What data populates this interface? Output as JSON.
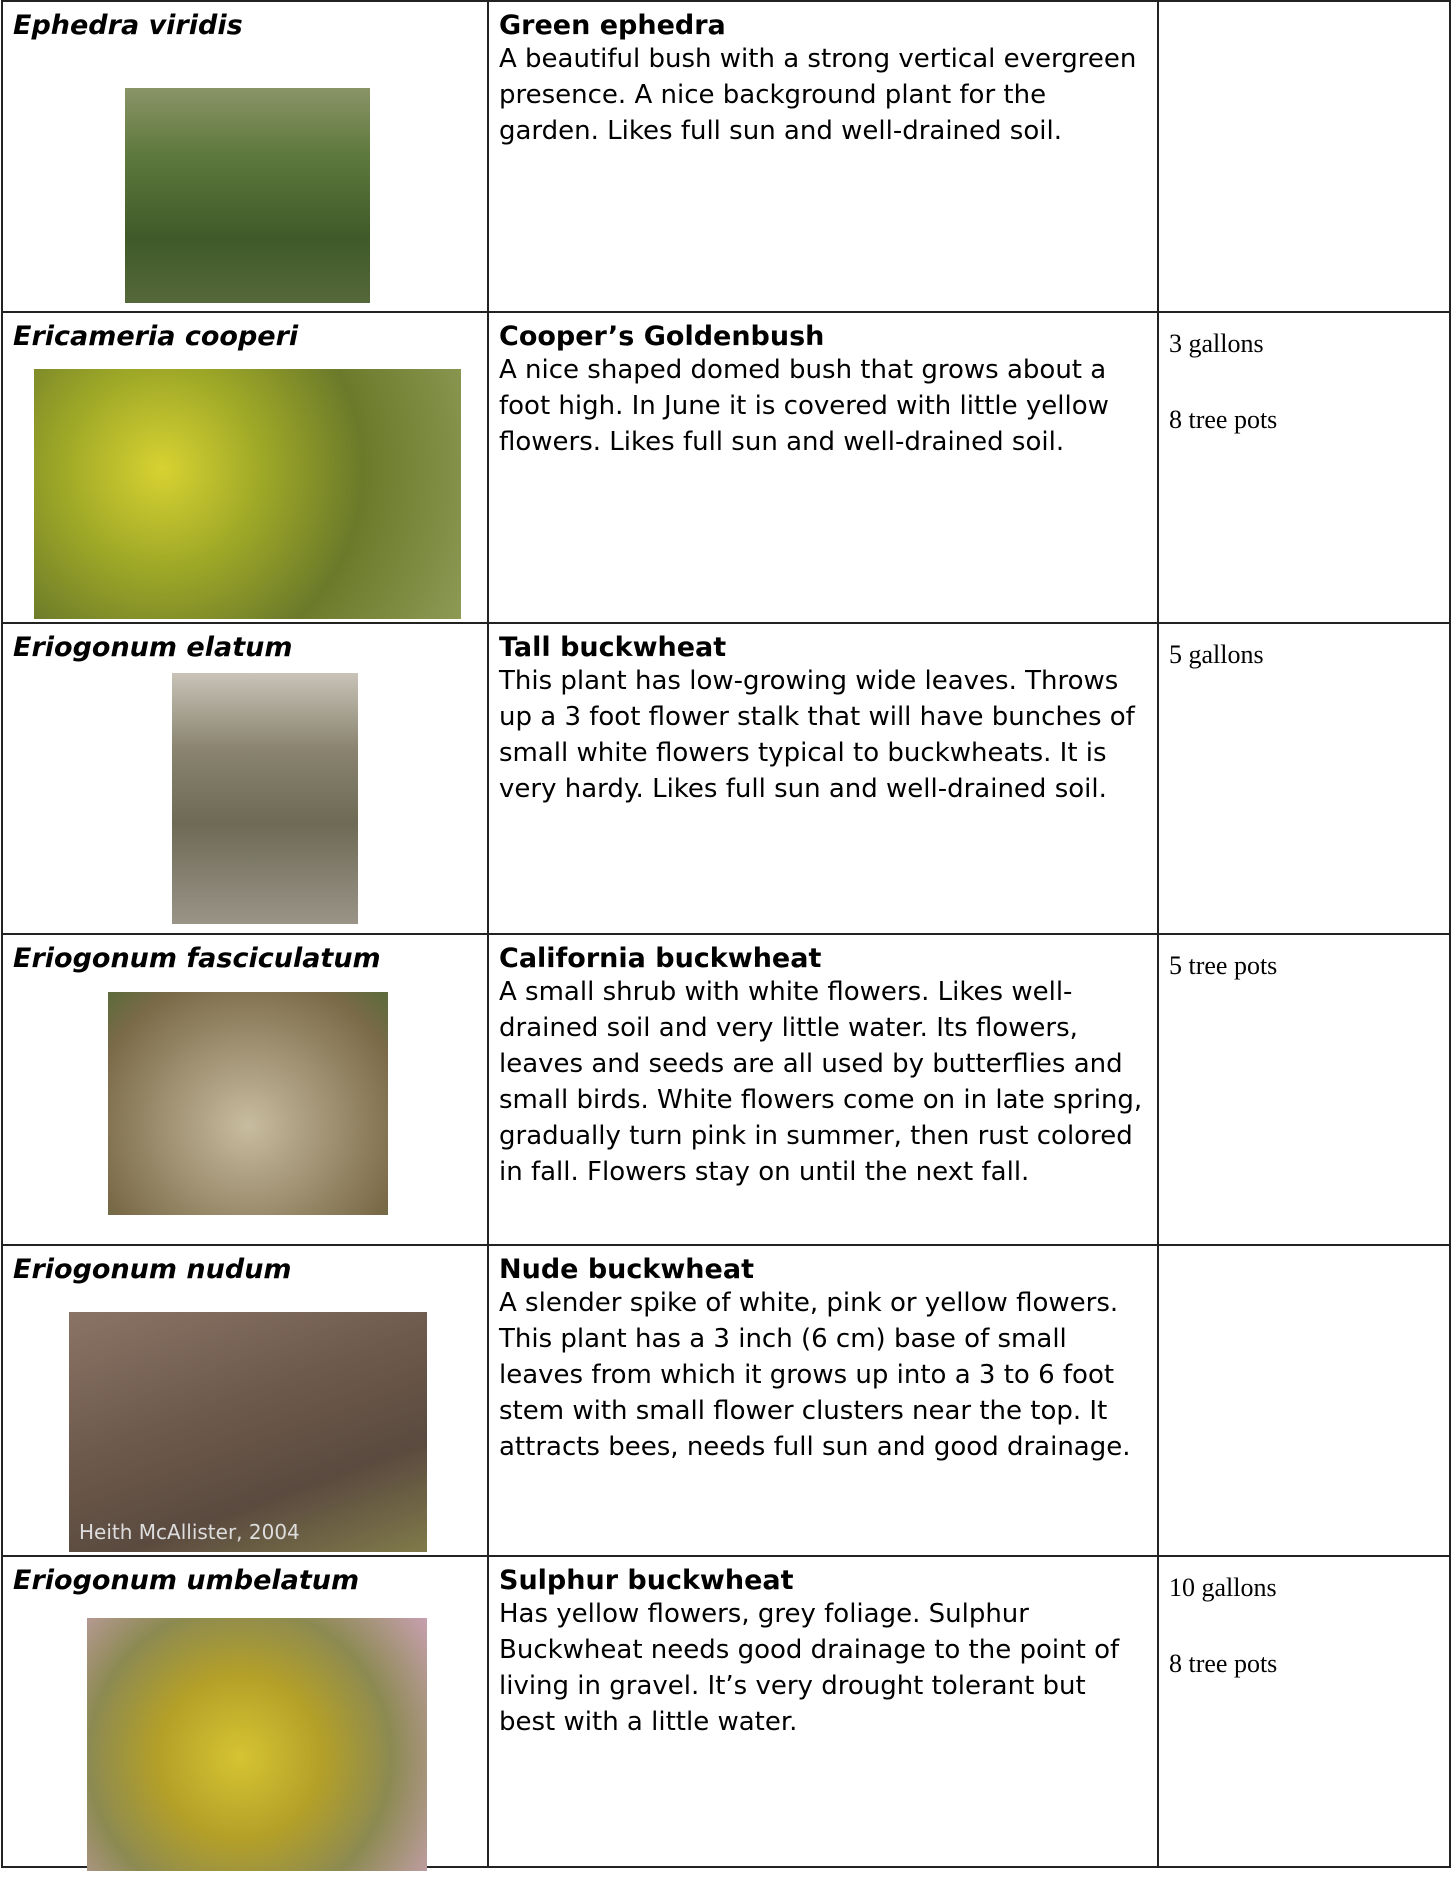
{
  "rows": [
    {
      "latin": "Ephedra viridis",
      "common": "Green ephedra",
      "description": "A beautiful bush with a strong vertical evergreen presence. A nice background plant for the garden. Likes full sun and well-drained soil.",
      "sizes": []
    },
    {
      "latin": "Ericameria cooperi",
      "common": "Cooper’s Goldenbush",
      "description": "A nice shaped domed bush that grows about a foot high. In June it is covered with little yellow flowers. Likes full sun and well-drained soil.",
      "sizes": [
        "3 gallons",
        "8 tree pots"
      ]
    },
    {
      "latin": "Eriogonum elatum",
      "common": "Tall buckwheat",
      "description": "This plant has low-growing wide leaves. Throws up a 3 foot flower stalk that will have bunches of small white flowers typical to buckwheats. It is very hardy. Likes full sun and well-drained soil.",
      "sizes": [
        "5 gallons"
      ]
    },
    {
      "latin": "Eriogonum fasciculatum",
      "common": "California buckwheat",
      "description": "A small shrub with white flowers. Likes well-drained soil and very little water. Its flowers, leaves and seeds are all used by butterflies and small birds. White flowers come on in late spring, gradually turn pink in summer, then rust colored in fall. Flowers stay on until the next fall.",
      "sizes": [
        "5 tree pots"
      ]
    },
    {
      "latin": "Eriogonum nudum",
      "common": "Nude buckwheat",
      "description": "A slender spike of white, pink or yellow flowers. This plant has a 3 inch (6 cm) base of small leaves from which it grows up into a 3 to 6 foot stem with small flower clusters near the top. It attracts bees, needs full sun and good drainage.",
      "sizes": [],
      "photo_caption": "Heith McAllister, 2004"
    },
    {
      "latin": "Eriogonum umbelatum",
      "common": "Sulphur buckwheat",
      "description": "Has yellow flowers, grey foliage. Sulphur Buckwheat needs good drainage to the point of living in gravel.  It’s very drought tolerant but best with a little water.",
      "sizes": [
        "10 gallons",
        "8 tree pots"
      ]
    }
  ]
}
